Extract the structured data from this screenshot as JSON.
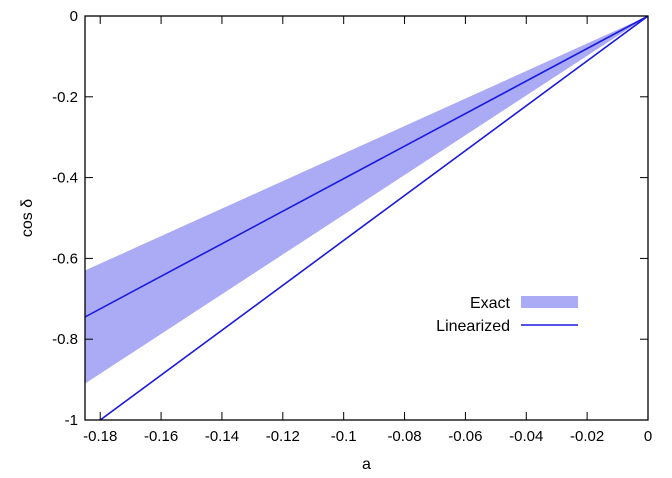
{
  "chart_data": {
    "type": "line",
    "title": "",
    "xlabel": "a",
    "ylabel": "cos δ",
    "xlim": [
      -0.185,
      0
    ],
    "ylim": [
      -1,
      0
    ],
    "x_ticks": [
      -0.18,
      -0.16,
      -0.14,
      -0.12,
      -0.1,
      -0.08,
      -0.06,
      -0.04,
      -0.02,
      0
    ],
    "x_tick_labels": [
      "-0.18",
      "-0.16",
      "-0.14",
      "-0.12",
      "-0.1",
      "-0.08",
      "-0.06",
      "-0.04",
      "-0.02",
      "0"
    ],
    "y_ticks": [
      -1,
      -0.8,
      -0.6,
      -0.4,
      -0.2,
      0
    ],
    "y_tick_labels": [
      "-1",
      "-0.8",
      "-0.6",
      "-0.4",
      "-0.2",
      "0"
    ],
    "grid": false,
    "legend_position": "lower-right",
    "series": [
      {
        "name": "Exact",
        "kind": "band",
        "color": "#aaaaf5",
        "x": [
          -0.185,
          0
        ],
        "lower": [
          -0.91,
          0
        ],
        "upper": [
          -0.63,
          0
        ]
      },
      {
        "name": "Linearized",
        "kind": "lines",
        "color": "#1a1ae0",
        "lines": [
          {
            "x": [
              -0.185,
              0
            ],
            "y": [
              -0.745,
              0
            ]
          },
          {
            "x": [
              -0.18,
              0
            ],
            "y": [
              -1,
              0
            ]
          }
        ]
      }
    ]
  }
}
